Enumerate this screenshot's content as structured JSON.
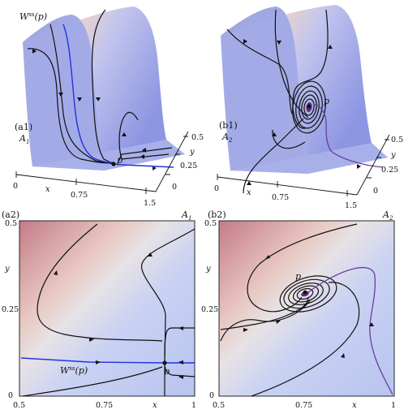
{
  "panels": {
    "a1": {
      "tag": "(a1)",
      "attractor": "A",
      "attractor_sub": "1",
      "label_p": "p",
      "wss_label": "W",
      "wss_sup": "ss",
      "wss_arg": "(p)",
      "x_ticks": [
        "0",
        "0.75",
        "1.5"
      ],
      "y_ticks": [
        "0",
        "0.25",
        "0.5"
      ],
      "x_label": "x",
      "y_label": "y"
    },
    "b1": {
      "tag": "(b1)",
      "attractor": "A",
      "attractor_sub": "2",
      "label_p": "p",
      "x_ticks": [
        "0",
        "0.75",
        "1.5"
      ],
      "y_ticks": [
        "0",
        "0.25",
        "0.5"
      ],
      "x_label": "x",
      "y_label": "y"
    },
    "a2": {
      "tag": "(a2)",
      "attractor": "A",
      "attractor_sub": "1",
      "label_p": "p",
      "wss_label": "W",
      "wss_sup": "ss",
      "wss_arg": "(p)",
      "x_ticks": [
        "0.5",
        "0.75",
        "x",
        "1"
      ],
      "y_ticks": [
        "0",
        "0.25",
        "0.5"
      ],
      "y_label": "y"
    },
    "b2": {
      "tag": "(b2)",
      "attractor": "A",
      "attractor_sub": "2",
      "label_p": "p",
      "x_ticks": [
        "0.5",
        "0.75",
        "x",
        "1"
      ],
      "y_ticks": [
        "0",
        "0.25",
        "0.5"
      ],
      "y_label": "y"
    }
  },
  "colors": {
    "surface_high": "#c8868f",
    "surface_mid": "#ecdcd4",
    "surface_low": "#9aa2e6",
    "plane_low": "#c4cef2",
    "orbit_black": "#111111",
    "orbit_blue": "#2233dd",
    "orbit_purple": "#6a3fa0"
  }
}
